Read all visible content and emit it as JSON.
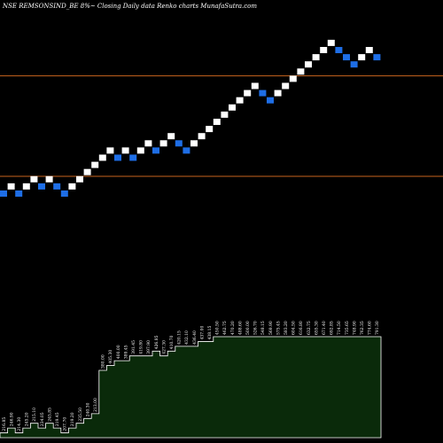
{
  "header": {
    "title": "NSE REMSONSIND_BE 8%~  Closing Daily data  Renko  charts MunafaSutra.com"
  },
  "colors": {
    "background": "#000000",
    "up_brick": "#ffffff",
    "down_brick": "#1e6ee6",
    "reference_line": "#c8641e",
    "volume_fill": "#0a2a0a",
    "volume_outline": "#ffffff"
  },
  "chart_data": {
    "type": "renko",
    "title": "NSE REMSONSIND_BE 8%~  Closing Daily data  Renko  charts MunafaSutra.com",
    "bricks": [
      {
        "level": 0,
        "dir": "down"
      },
      {
        "level": 1,
        "dir": "up"
      },
      {
        "level": 0,
        "dir": "down"
      },
      {
        "level": 1,
        "dir": "up"
      },
      {
        "level": 2,
        "dir": "up"
      },
      {
        "level": 1,
        "dir": "down"
      },
      {
        "level": 2,
        "dir": "up"
      },
      {
        "level": 1,
        "dir": "down"
      },
      {
        "level": 0,
        "dir": "down"
      },
      {
        "level": 1,
        "dir": "up"
      },
      {
        "level": 2,
        "dir": "up"
      },
      {
        "level": 3,
        "dir": "up"
      },
      {
        "level": 4,
        "dir": "up"
      },
      {
        "level": 5,
        "dir": "up"
      },
      {
        "level": 6,
        "dir": "up"
      },
      {
        "level": 5,
        "dir": "down"
      },
      {
        "level": 6,
        "dir": "up"
      },
      {
        "level": 5,
        "dir": "down"
      },
      {
        "level": 6,
        "dir": "up"
      },
      {
        "level": 7,
        "dir": "up"
      },
      {
        "level": 6,
        "dir": "down"
      },
      {
        "level": 7,
        "dir": "up"
      },
      {
        "level": 8,
        "dir": "up"
      },
      {
        "level": 7,
        "dir": "down"
      },
      {
        "level": 6,
        "dir": "down"
      },
      {
        "level": 7,
        "dir": "up"
      },
      {
        "level": 8,
        "dir": "up"
      },
      {
        "level": 9,
        "dir": "up"
      },
      {
        "level": 10,
        "dir": "up"
      },
      {
        "level": 11,
        "dir": "up"
      },
      {
        "level": 12,
        "dir": "up"
      },
      {
        "level": 13,
        "dir": "up"
      },
      {
        "level": 14,
        "dir": "up"
      },
      {
        "level": 15,
        "dir": "up"
      },
      {
        "level": 14,
        "dir": "down"
      },
      {
        "level": 13,
        "dir": "down"
      },
      {
        "level": 14,
        "dir": "up"
      },
      {
        "level": 15,
        "dir": "up"
      },
      {
        "level": 16,
        "dir": "up"
      },
      {
        "level": 17,
        "dir": "up"
      },
      {
        "level": 18,
        "dir": "up"
      },
      {
        "level": 19,
        "dir": "up"
      },
      {
        "level": 20,
        "dir": "up"
      },
      {
        "level": 21,
        "dir": "up"
      },
      {
        "level": 20,
        "dir": "down"
      },
      {
        "level": 19,
        "dir": "down"
      },
      {
        "level": 18,
        "dir": "down"
      },
      {
        "level": 19,
        "dir": "up"
      },
      {
        "level": 20,
        "dir": "up"
      },
      {
        "level": 19,
        "dir": "down"
      }
    ],
    "reference_levels": [
      16.4,
      2.4
    ],
    "volume": {
      "levels": [
        1,
        2,
        1,
        2,
        3,
        2,
        3,
        2,
        1,
        2,
        3,
        4,
        5,
        14,
        15,
        16,
        16,
        17,
        17,
        17,
        18,
        17,
        18,
        19,
        19,
        19,
        20,
        20,
        21,
        21,
        21,
        21,
        21,
        21,
        21,
        21,
        21,
        21,
        21,
        21,
        21,
        21,
        21,
        21,
        21,
        21,
        21,
        21,
        21,
        21
      ],
      "max_level": 21,
      "labels": [
        "216.85",
        "246.90",
        "214.30",
        "245.20",
        "215.10",
        "234.05",
        "245.85",
        "219.45",
        "207.70",
        "219.20",
        "235.50",
        "240.30",
        "213.00",
        "380.00",
        "405.30",
        "400.00",
        "389.45",
        "391.45",
        "419.80",
        "397.90",
        "426.85",
        "427.30",
        "410.70",
        "420.15",
        "432.10",
        "436.40",
        "437.00",
        "438.15",
        "450.50",
        "462.75",
        "470.20",
        "488.60",
        "500.00",
        "526.70",
        "548.15",
        "569.90",
        "575.45",
        "583.20",
        "604.50",
        "616.80",
        "632.75",
        "655.30",
        "671.40",
        "692.85",
        "714.50",
        "735.65",
        "748.90",
        "762.35",
        "774.60",
        "791.30"
      ]
    }
  }
}
